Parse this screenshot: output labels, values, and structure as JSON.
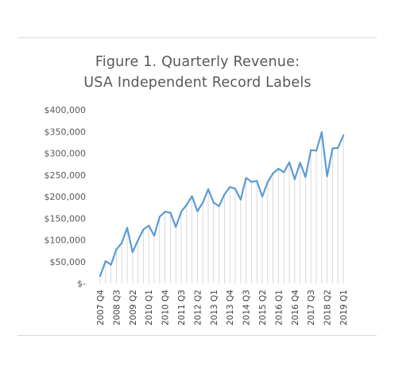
{
  "chart_data": {
    "type": "line",
    "title_line1": "Figure 1. Quarterly Revenue:",
    "title_line2": "USA Independent Record Labels",
    "xlabel": "",
    "ylabel": "",
    "ylim": [
      0,
      400000
    ],
    "y_ticks": [
      "$400,000",
      "$350,000",
      "$300,000",
      "$250,000",
      "$200,000",
      "$150,000",
      "$100,000",
      "$50,000",
      "$-"
    ],
    "y_tick_values": [
      400000,
      350000,
      300000,
      250000,
      200000,
      150000,
      100000,
      50000,
      0
    ],
    "x_tick_labels": [
      "2007 Q4",
      "2008 Q3",
      "2009 Q2",
      "2010 Q1",
      "2010 Q4",
      "2011 Q3",
      "2012 Q2",
      "2013 Q1",
      "2013 Q4",
      "2014 Q3",
      "2015 Q2",
      "2016 Q1",
      "2016 Q4",
      "2017 Q3",
      "2018 Q2",
      "2019 Q1"
    ],
    "x": [
      "2007 Q4",
      "2008 Q1",
      "2008 Q2",
      "2008 Q3",
      "2008 Q4",
      "2009 Q1",
      "2009 Q2",
      "2009 Q3",
      "2009 Q4",
      "2010 Q1",
      "2010 Q2",
      "2010 Q3",
      "2010 Q4",
      "2011 Q1",
      "2011 Q2",
      "2011 Q3",
      "2011 Q4",
      "2012 Q1",
      "2012 Q2",
      "2012 Q3",
      "2012 Q4",
      "2013 Q1",
      "2013 Q2",
      "2013 Q3",
      "2013 Q4",
      "2014 Q1",
      "2014 Q2",
      "2014 Q3",
      "2014 Q4",
      "2015 Q1",
      "2015 Q2",
      "2015 Q3",
      "2015 Q4",
      "2016 Q1",
      "2016 Q2",
      "2016 Q3",
      "2016 Q4",
      "2017 Q1",
      "2017 Q2",
      "2017 Q3",
      "2017 Q4",
      "2018 Q1",
      "2018 Q2",
      "2018 Q3",
      "2018 Q4",
      "2019 Q1"
    ],
    "series": [
      {
        "values": [
          17000,
          51000,
          43000,
          78000,
          93000,
          128000,
          72000,
          99000,
          124000,
          133000,
          110000,
          153000,
          165000,
          163000,
          130000,
          165000,
          181000,
          201000,
          166000,
          186000,
          217000,
          186000,
          178000,
          205000,
          222000,
          218000,
          193000,
          243000,
          234000,
          236000,
          200000,
          233000,
          254000,
          264000,
          256000,
          279000,
          240000,
          278000,
          245000,
          307000,
          306000,
          348000,
          247000,
          311000,
          312000,
          341000
        ]
      }
    ],
    "line_color": "#5b9bd5",
    "grid": false,
    "drop_lines": true,
    "legend": "none"
  }
}
